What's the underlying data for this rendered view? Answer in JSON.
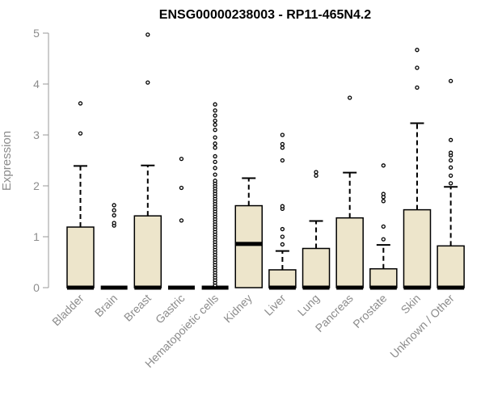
{
  "chart_data": {
    "type": "box",
    "title": "ENSG00000238003 - RP11-465N4.2",
    "xlabel": "",
    "ylabel": "Expression",
    "ylim": [
      0,
      5
    ],
    "yticks": [
      0,
      1,
      2,
      3,
      4,
      5
    ],
    "grid": false,
    "legend": "none",
    "box_fill": "#ede5cb",
    "categories": [
      "Bladder",
      "Brain",
      "Breast",
      "Gastric",
      "Hematopoietic cells",
      "Kidney",
      "Liver",
      "Lung",
      "Pancreas",
      "Prostate",
      "Skin",
      "Unknown / Other"
    ],
    "boxes": [
      {
        "label": "Bladder",
        "q1": 0,
        "median": 0,
        "q3": 1.19,
        "whisker_low": 0,
        "whisker_high": 2.39,
        "outliers": [
          3.03,
          3.62
        ]
      },
      {
        "label": "Brain",
        "q1": 0,
        "median": 0,
        "q3": 0,
        "whisker_low": 0,
        "whisker_high": 0,
        "outliers": [
          1.22,
          1.27,
          1.42,
          1.52,
          1.62
        ]
      },
      {
        "label": "Breast",
        "q1": 0,
        "median": 0,
        "q3": 1.41,
        "whisker_low": 0,
        "whisker_high": 2.4,
        "outliers": [
          4.03,
          4.97
        ]
      },
      {
        "label": "Gastric",
        "q1": 0,
        "median": 0,
        "q3": 0,
        "whisker_low": 0,
        "whisker_high": 0,
        "outliers": [
          1.32,
          1.96,
          2.53
        ]
      },
      {
        "label": "Hematopoietic cells",
        "q1": 0,
        "median": 0,
        "q3": 0,
        "whisker_low": 0,
        "whisker_high": 0,
        "outliers": [
          0.05,
          0.1,
          0.15,
          0.2,
          0.25,
          0.3,
          0.35,
          0.4,
          0.45,
          0.5,
          0.55,
          0.6,
          0.65,
          0.7,
          0.75,
          0.8,
          0.85,
          0.9,
          0.95,
          1.0,
          1.05,
          1.1,
          1.15,
          1.2,
          1.25,
          1.3,
          1.35,
          1.4,
          1.45,
          1.5,
          1.55,
          1.6,
          1.65,
          1.7,
          1.75,
          1.8,
          1.85,
          1.9,
          1.95,
          2.0,
          2.05,
          2.1,
          2.22,
          2.35,
          2.47,
          2.58,
          2.75,
          2.83,
          2.95,
          3.1,
          3.2,
          3.28,
          3.38,
          3.48,
          3.6
        ]
      },
      {
        "label": "Kidney",
        "q1": 0,
        "median": 0.86,
        "q3": 1.61,
        "whisker_low": 0,
        "whisker_high": 2.15,
        "outliers": []
      },
      {
        "label": "Liver",
        "q1": 0,
        "median": 0,
        "q3": 0.35,
        "whisker_low": 0,
        "whisker_high": 0.72,
        "outliers": [
          0.85,
          1.0,
          1.15,
          1.55,
          1.6,
          2.5,
          2.75,
          2.82,
          3.0
        ]
      },
      {
        "label": "Lung",
        "q1": 0,
        "median": 0,
        "q3": 0.77,
        "whisker_low": 0,
        "whisker_high": 1.31,
        "outliers": [
          2.2,
          2.27
        ]
      },
      {
        "label": "Pancreas",
        "q1": 0,
        "median": 0,
        "q3": 1.37,
        "whisker_low": 0,
        "whisker_high": 2.26,
        "outliers": [
          3.73
        ]
      },
      {
        "label": "Prostate",
        "q1": 0,
        "median": 0,
        "q3": 0.37,
        "whisker_low": 0,
        "whisker_high": 0.84,
        "outliers": [
          0.95,
          1.2,
          1.7,
          1.78,
          1.84,
          2.4
        ]
      },
      {
        "label": "Skin",
        "q1": 0,
        "median": 0,
        "q3": 1.53,
        "whisker_low": 0,
        "whisker_high": 3.23,
        "outliers": [
          3.93,
          4.32,
          4.67
        ]
      },
      {
        "label": "Unknown / Other",
        "q1": 0,
        "median": 0,
        "q3": 0.82,
        "whisker_low": 0,
        "whisker_high": 1.98,
        "outliers": [
          2.05,
          2.2,
          2.36,
          2.5,
          2.6,
          2.65,
          2.9,
          4.06
        ]
      }
    ]
  }
}
